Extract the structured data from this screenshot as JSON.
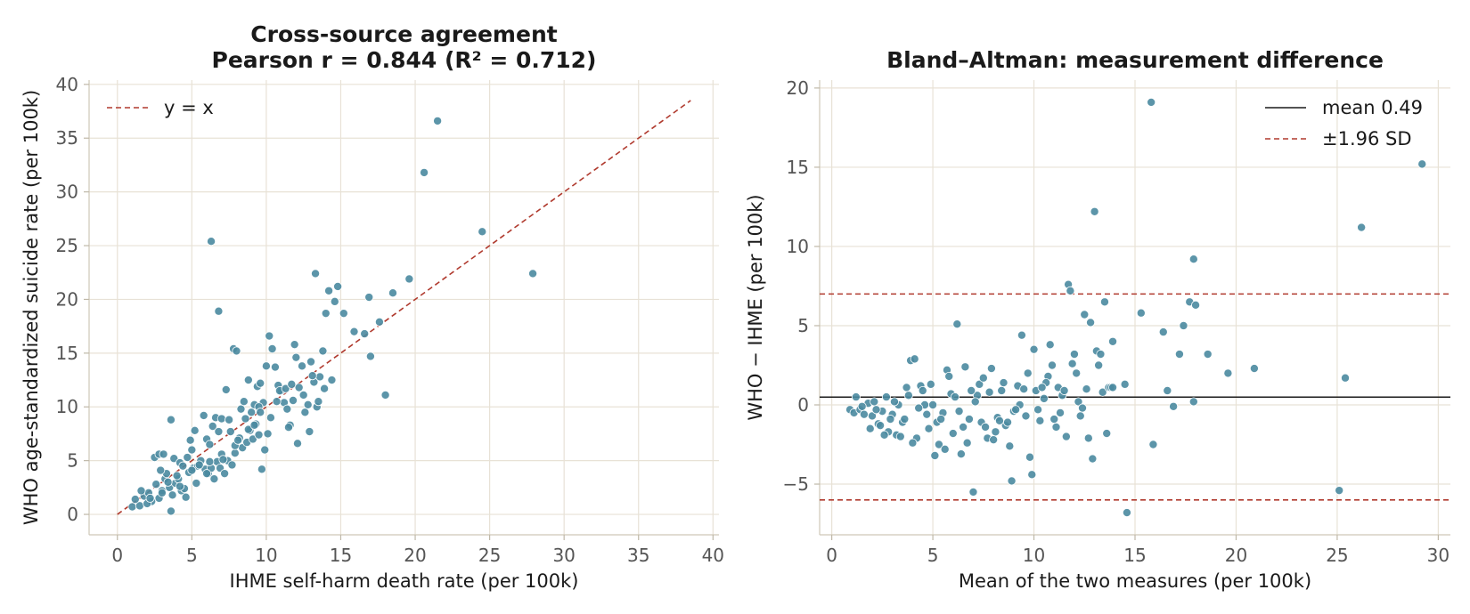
{
  "colors": {
    "points": "#4a8aa0",
    "reference": "#b03a2e",
    "mean_line": "#1a1a1a",
    "grid": "#e8e2d6"
  },
  "chart_data": [
    {
      "type": "scatter",
      "title_lines": [
        "Cross-source agreement",
        "Pearson r = 0.844  (R² = 0.712)"
      ],
      "xlabel": "IHME self-harm death rate (per 100k)",
      "ylabel": "WHO age-standardized suicide rate (per 100k)",
      "xlim": [
        -1.9,
        40.4
      ],
      "ylim": [
        -1.9,
        40.4
      ],
      "xticks": [
        0,
        5,
        10,
        15,
        20,
        25,
        30,
        35,
        40
      ],
      "yticks": [
        0,
        5,
        10,
        15,
        20,
        25,
        30,
        35,
        40
      ],
      "grid": true,
      "legend": {
        "placement": "top-left",
        "entries": [
          {
            "label": "y = x",
            "style": "dashed",
            "color": "#b03a2e"
          }
        ]
      },
      "reference_line": {
        "label": "y = x",
        "x": [
          0,
          38.5
        ],
        "y": [
          0,
          38.5
        ]
      },
      "points": [
        [
          1,
          0.7
        ],
        [
          1.5,
          0.8
        ],
        [
          1.2,
          1.4
        ],
        [
          1.8,
          1.7
        ],
        [
          2.1,
          2
        ],
        [
          2.3,
          1.2
        ],
        [
          2.6,
          2.8
        ],
        [
          2.8,
          1.5
        ],
        [
          3,
          2.2
        ],
        [
          3.2,
          3.3
        ],
        [
          3.5,
          2.5
        ],
        [
          3.7,
          1.8
        ],
        [
          3.9,
          2.9
        ],
        [
          4.1,
          3.3
        ],
        [
          4.3,
          2.2
        ],
        [
          4.6,
          1.6
        ],
        [
          4.8,
          3.9
        ],
        [
          5.1,
          4.3
        ],
        [
          5.3,
          2.9
        ],
        [
          2.5,
          5.3
        ],
        [
          2.8,
          5.6
        ],
        [
          3.1,
          5.6
        ],
        [
          3.3,
          3.8
        ],
        [
          3.6,
          0.3
        ],
        [
          3.8,
          5.2
        ],
        [
          4.2,
          4.8
        ],
        [
          4.4,
          4.5
        ],
        [
          4.7,
          5.3
        ],
        [
          5.0,
          6.0
        ],
        [
          5.4,
          4.5
        ],
        [
          5.6,
          5.0
        ],
        [
          5.9,
          4.2
        ],
        [
          6.1,
          3.8
        ],
        [
          6.3,
          4.3
        ],
        [
          6.5,
          3.3
        ],
        [
          6.7,
          4.9
        ],
        [
          6.9,
          4.3
        ],
        [
          7.2,
          3.8
        ],
        [
          7.4,
          5.0
        ],
        [
          7.7,
          4.6
        ],
        [
          7.9,
          5.7
        ],
        [
          8.2,
          7.1
        ],
        [
          8.4,
          6.2
        ],
        [
          8.7,
          6.7
        ],
        [
          8.9,
          7.8
        ],
        [
          9.1,
          7.0
        ],
        [
          9.3,
          8.4
        ],
        [
          9.5,
          7.4
        ],
        [
          9.7,
          4.2
        ],
        [
          9.9,
          6.0
        ],
        [
          6.0,
          7.0
        ],
        [
          6.2,
          6.5
        ],
        [
          6.4,
          8.2
        ],
        [
          6.6,
          9.0
        ],
        [
          6.8,
          7.7
        ],
        [
          7.0,
          8.9
        ],
        [
          7.3,
          11.6
        ],
        [
          7.5,
          8.8
        ],
        [
          7.8,
          15.4
        ],
        [
          8.0,
          15.2
        ],
        [
          8.3,
          9.8
        ],
        [
          8.5,
          10.5
        ],
        [
          8.8,
          12.5
        ],
        [
          9.0,
          9.5
        ],
        [
          9.2,
          10.2
        ],
        [
          9.4,
          11.9
        ],
        [
          9.6,
          12.2
        ],
        [
          9.8,
          10.4
        ],
        [
          10.0,
          13.8
        ],
        [
          10.2,
          16.6
        ],
        [
          10.4,
          15.4
        ],
        [
          10.6,
          13.7
        ],
        [
          10.8,
          12.0
        ],
        [
          11.0,
          11.5
        ],
        [
          11.2,
          10.4
        ],
        [
          11.4,
          9.8
        ],
        [
          11.6,
          8.3
        ],
        [
          11.8,
          10.6
        ],
        [
          12.0,
          14.6
        ],
        [
          12.2,
          11.8
        ],
        [
          12.4,
          13.8
        ],
        [
          12.6,
          9.5
        ],
        [
          12.8,
          10.2
        ],
        [
          13.0,
          14.2
        ],
        [
          13.2,
          12.3
        ],
        [
          13.4,
          10.0
        ],
        [
          13.6,
          12.8
        ],
        [
          13.8,
          15.2
        ],
        [
          14.0,
          18.7
        ],
        [
          14.2,
          20.8
        ],
        [
          14.4,
          12.5
        ],
        [
          14.6,
          19.8
        ],
        [
          14.8,
          21.2
        ],
        [
          15.2,
          18.7
        ],
        [
          15.9,
          17.0
        ],
        [
          16.6,
          16.8
        ],
        [
          17.0,
          14.7
        ],
        [
          17.6,
          17.9
        ],
        [
          18.0,
          11.1
        ],
        [
          18.5,
          20.6
        ],
        [
          6.3,
          25.4
        ],
        [
          6.8,
          18.9
        ],
        [
          13.3,
          22.4
        ],
        [
          16.9,
          20.2
        ],
        [
          19.6,
          21.9
        ],
        [
          20.6,
          31.8
        ],
        [
          21.5,
          36.6
        ],
        [
          24.5,
          26.3
        ],
        [
          27.9,
          22.4
        ],
        [
          11.9,
          15.8
        ],
        [
          10.9,
          11.5
        ],
        [
          9.5,
          10.0
        ],
        [
          8.6,
          8.9
        ],
        [
          7.6,
          7.7
        ],
        [
          5.8,
          9.2
        ],
        [
          5.2,
          7.8
        ],
        [
          4.9,
          6.9
        ],
        [
          3.6,
          8.8
        ],
        [
          2.9,
          4.1
        ],
        [
          2.0,
          1.0
        ],
        [
          1.6,
          2.2
        ],
        [
          3.4,
          3.0
        ],
        [
          4.0,
          3.6
        ],
        [
          4.5,
          2.4
        ],
        [
          5.5,
          4.6
        ],
        [
          6.2,
          4.9
        ],
        [
          7.0,
          5.6
        ],
        [
          7.9,
          6.4
        ],
        [
          8.8,
          7.9
        ],
        [
          9.6,
          9.5
        ],
        [
          10.3,
          9.0
        ],
        [
          10.7,
          10.5
        ],
        [
          11.3,
          11.7
        ],
        [
          11.7,
          12.1
        ],
        [
          12.1,
          6.6
        ],
        [
          12.5,
          11.1
        ],
        [
          13.1,
          12.9
        ],
        [
          13.5,
          10.5
        ],
        [
          10.1,
          7.5
        ],
        [
          9.2,
          8.3
        ],
        [
          8.1,
          6.9
        ],
        [
          7.1,
          5.1
        ],
        [
          6.0,
          3.8
        ],
        [
          5.0,
          4.1
        ],
        [
          4.2,
          2.6
        ],
        [
          3.0,
          2.0
        ],
        [
          2.2,
          1.5
        ],
        [
          11.5,
          8.1
        ],
        [
          12.9,
          7.7
        ],
        [
          13.9,
          11.7
        ]
      ]
    },
    {
      "type": "scatter",
      "title": "Bland–Altman: measurement difference",
      "xlabel": "Mean of the two measures (per 100k)",
      "ylabel": "WHO − IHME (per 100k)",
      "xlim": [
        -0.6,
        30.6
      ],
      "ylim": [
        -8.2,
        20.5
      ],
      "xticks": [
        0,
        5,
        10,
        15,
        20,
        25,
        30
      ],
      "yticks": [
        -5,
        0,
        5,
        10,
        15,
        20
      ],
      "ytick_labels": [
        "−5",
        "0",
        "5",
        "10",
        "15",
        "20"
      ],
      "grid": true,
      "legend": {
        "placement": "top-right",
        "entries": [
          {
            "label": "mean 0.49",
            "style": "solid",
            "color": "#1a1a1a"
          },
          {
            "label": "±1.96 SD",
            "style": "dashed",
            "color": "#b03a2e"
          }
        ]
      },
      "mean_line": 0.49,
      "limits_of_agreement": [
        -6.0,
        7.0
      ],
      "points": [
        [
          0.9,
          -0.3
        ],
        [
          1.1,
          -0.5
        ],
        [
          1.2,
          0.5
        ],
        [
          1.4,
          -0.3
        ],
        [
          1.6,
          -0.6
        ],
        [
          1.8,
          0.1
        ],
        [
          2.0,
          -0.7
        ],
        [
          2.1,
          0.2
        ],
        [
          2.3,
          -1.2
        ],
        [
          2.5,
          -0.4
        ],
        [
          2.7,
          0.5
        ],
        [
          2.8,
          -1.7
        ],
        [
          3.0,
          -0.6
        ],
        [
          3.2,
          -1.9
        ],
        [
          3.3,
          0.0
        ],
        [
          3.5,
          -1.1
        ],
        [
          3.7,
          1.1
        ],
        [
          3.9,
          2.8
        ],
        [
          4.1,
          2.9
        ],
        [
          4.2,
          -2.1
        ],
        [
          4.4,
          1.2
        ],
        [
          4.6,
          0.0
        ],
        [
          4.8,
          -1.5
        ],
        [
          5.0,
          0.0
        ],
        [
          5.1,
          -3.2
        ],
        [
          5.3,
          -2.5
        ],
        [
          5.5,
          -0.5
        ],
        [
          5.7,
          2.2
        ],
        [
          5.9,
          0.7
        ],
        [
          6.0,
          -1.8
        ],
        [
          6.2,
          5.1
        ],
        [
          6.4,
          -3.1
        ],
        [
          6.6,
          2.4
        ],
        [
          6.8,
          -0.9
        ],
        [
          7.0,
          -5.5
        ],
        [
          7.2,
          0.6
        ],
        [
          7.3,
          1.3
        ],
        [
          7.5,
          1.7
        ],
        [
          7.7,
          -2.1
        ],
        [
          7.9,
          2.3
        ],
        [
          8.0,
          -2.2
        ],
        [
          8.2,
          -0.8
        ],
        [
          8.4,
          0.9
        ],
        [
          8.6,
          -1.3
        ],
        [
          8.8,
          -2.6
        ],
        [
          9.0,
          -0.4
        ],
        [
          9.2,
          1.2
        ],
        [
          9.4,
          4.4
        ],
        [
          9.6,
          -0.7
        ],
        [
          9.8,
          -3.3
        ],
        [
          9.9,
          -4.4
        ],
        [
          10.0,
          3.5
        ],
        [
          10.1,
          0.9
        ],
        [
          10.3,
          -1.0
        ],
        [
          10.5,
          0.4
        ],
        [
          10.7,
          1.8
        ],
        [
          10.8,
          3.8
        ],
        [
          11.0,
          -0.9
        ],
        [
          11.2,
          1.1
        ],
        [
          11.4,
          0.6
        ],
        [
          11.6,
          -2.0
        ],
        [
          11.7,
          7.6
        ],
        [
          11.8,
          7.2
        ],
        [
          12.0,
          3.2
        ],
        [
          12.2,
          0.2
        ],
        [
          12.3,
          -0.7
        ],
        [
          12.5,
          5.7
        ],
        [
          12.7,
          -2.1
        ],
        [
          12.8,
          5.2
        ],
        [
          12.9,
          -3.4
        ],
        [
          13.0,
          12.2
        ],
        [
          13.1,
          3.4
        ],
        [
          13.2,
          2.5
        ],
        [
          13.3,
          3.2
        ],
        [
          13.4,
          0.8
        ],
        [
          13.5,
          6.5
        ],
        [
          13.7,
          1.1
        ],
        [
          13.8,
          1.1
        ],
        [
          13.9,
          4.0
        ],
        [
          14.5,
          1.3
        ],
        [
          14.6,
          -6.8
        ],
        [
          15.3,
          5.8
        ],
        [
          15.8,
          19.1
        ],
        [
          15.9,
          -2.5
        ],
        [
          16.4,
          4.6
        ],
        [
          16.6,
          0.9
        ],
        [
          16.9,
          -0.1
        ],
        [
          17.2,
          3.2
        ],
        [
          17.4,
          5.0
        ],
        [
          17.7,
          6.5
        ],
        [
          17.9,
          9.2
        ],
        [
          18.0,
          6.3
        ],
        [
          17.9,
          0.2
        ],
        [
          18.6,
          3.2
        ],
        [
          19.6,
          2.0
        ],
        [
          20.9,
          2.3
        ],
        [
          25.1,
          -5.4
        ],
        [
          25.4,
          1.7
        ],
        [
          26.2,
          11.2
        ],
        [
          29.2,
          15.2
        ],
        [
          1.5,
          -0.1
        ],
        [
          1.9,
          -1.5
        ],
        [
          2.2,
          -0.3
        ],
        [
          2.6,
          -1.9
        ],
        [
          3.1,
          0.2
        ],
        [
          3.4,
          -2.0
        ],
        [
          3.6,
          -0.9
        ],
        [
          4.0,
          -2.4
        ],
        [
          4.3,
          -0.2
        ],
        [
          4.5,
          0.9
        ],
        [
          4.9,
          1.3
        ],
        [
          5.2,
          -1.1
        ],
        [
          5.6,
          -2.8
        ],
        [
          6.1,
          0.5
        ],
        [
          6.5,
          -1.4
        ],
        [
          6.9,
          0.9
        ],
        [
          7.4,
          -1.1
        ],
        [
          7.8,
          0.8
        ],
        [
          8.1,
          -1.7
        ],
        [
          8.5,
          1.4
        ],
        [
          8.9,
          -4.8
        ],
        [
          9.3,
          0.0
        ],
        [
          9.7,
          2.0
        ],
        [
          10.2,
          -0.3
        ],
        [
          10.6,
          1.4
        ],
        [
          10.9,
          2.5
        ],
        [
          11.3,
          -0.5
        ],
        [
          11.9,
          2.6
        ],
        [
          12.4,
          -0.2
        ],
        [
          13.6,
          -1.8
        ],
        [
          9.1,
          -0.3
        ],
        [
          8.3,
          -1.0
        ],
        [
          7.6,
          -1.4
        ],
        [
          6.7,
          -2.4
        ],
        [
          5.8,
          1.8
        ],
        [
          5.4,
          -0.9
        ],
        [
          4.7,
          -0.6
        ],
        [
          3.8,
          0.6
        ],
        [
          2.9,
          -0.9
        ],
        [
          2.4,
          -1.3
        ],
        [
          12.1,
          2.0
        ],
        [
          11.5,
          0.9
        ],
        [
          10.4,
          1.1
        ],
        [
          9.5,
          1.0
        ],
        [
          8.7,
          -1.1
        ],
        [
          7.1,
          0.2
        ],
        [
          6.3,
          -0.4
        ],
        [
          12.6,
          1.0
        ],
        [
          13.9,
          1.1
        ],
        [
          11.1,
          -1.4
        ]
      ]
    }
  ]
}
